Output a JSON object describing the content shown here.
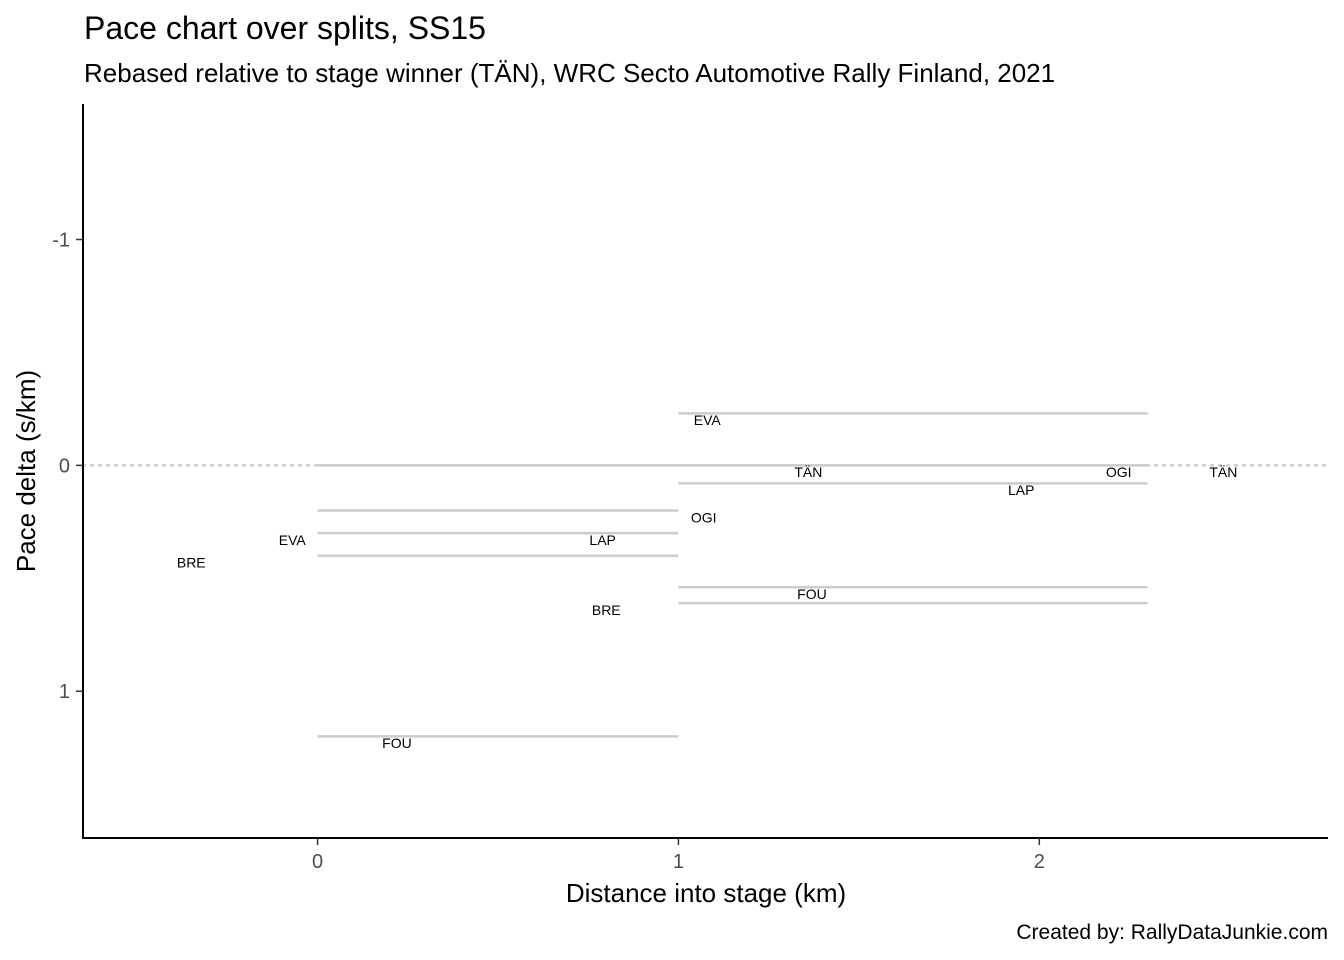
{
  "chart_data": {
    "type": "line",
    "title": "Pace chart over splits, SS15",
    "subtitle": "Rebased relative to stage winner (TÄN), WRC Secto Automotive Rally Finland, 2021",
    "caption": "Created by: RallyDataJunkie.com",
    "xlabel": "Distance into stage (km)",
    "ylabel": "Pace delta (s/km)",
    "xlim": [
      -0.65,
      2.8
    ],
    "ylim": [
      1.65,
      -1.6
    ],
    "y_reversed": true,
    "x_ticks": [
      0,
      1,
      2
    ],
    "x_tick_labels": [
      "0",
      "1",
      "2"
    ],
    "y_ticks": [
      -1,
      0,
      1
    ],
    "y_tick_labels": [
      "-1",
      "0",
      "1"
    ],
    "reference_line": {
      "y": 0,
      "style": "dotted",
      "color": "#cccccc"
    },
    "segment_color": "#cccccc",
    "segments": [
      {
        "x0": 0,
        "x1": 1,
        "y": 0
      },
      {
        "x0": 0,
        "x1": 1,
        "y": 0.2
      },
      {
        "x0": 0,
        "x1": 1,
        "y": 0.3
      },
      {
        "x0": 0,
        "x1": 1,
        "y": 0.4
      },
      {
        "x0": 0,
        "x1": 1,
        "y": 1.2
      },
      {
        "x0": 1,
        "x1": 2.3,
        "y": -0.23
      },
      {
        "x0": 1,
        "x1": 2.3,
        "y": 0
      },
      {
        "x0": 1,
        "x1": 2.3,
        "y": 0.08
      },
      {
        "x0": 1,
        "x1": 2.3,
        "y": 0.54
      },
      {
        "x0": 1,
        "x1": 2.3,
        "y": 0.61
      }
    ],
    "labels": [
      {
        "text": "BRE",
        "x": -0.35,
        "y": 0.43
      },
      {
        "text": "EVA",
        "x": -0.07,
        "y": 0.33
      },
      {
        "text": "FOU",
        "x": 0.22,
        "y": 1.23
      },
      {
        "text": "LAP",
        "x": 0.79,
        "y": 0.33
      },
      {
        "text": "BRE",
        "x": 0.8,
        "y": 0.64
      },
      {
        "text": "EVA",
        "x": 1.08,
        "y": -0.2
      },
      {
        "text": "OGI",
        "x": 1.07,
        "y": 0.23
      },
      {
        "text": "TÄN",
        "x": 1.36,
        "y": 0.03
      },
      {
        "text": "FOU",
        "x": 1.37,
        "y": 0.57
      },
      {
        "text": "LAP",
        "x": 1.95,
        "y": 0.11
      },
      {
        "text": "OGI",
        "x": 2.22,
        "y": 0.03
      },
      {
        "text": "TÄN",
        "x": 2.51,
        "y": 0.03
      }
    ]
  }
}
